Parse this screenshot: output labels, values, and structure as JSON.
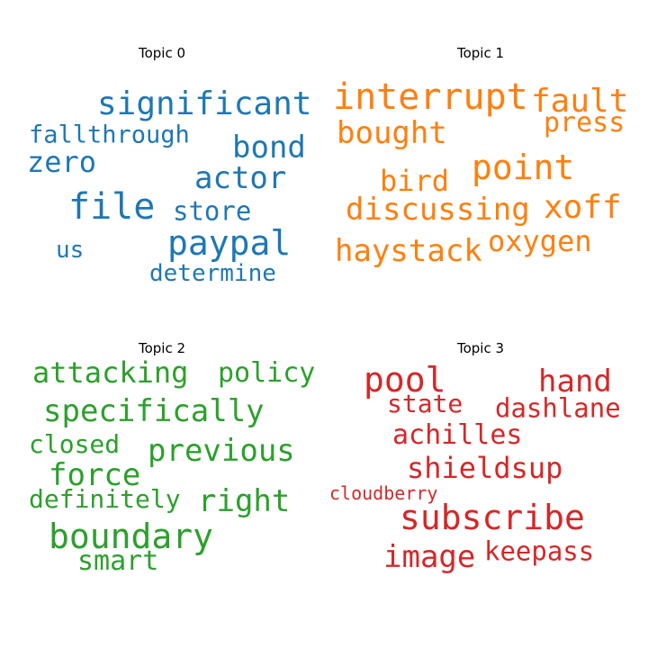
{
  "chart_data": [
    {
      "type": "wordcloud",
      "title": "Topic 0",
      "color": "#1f77b4",
      "words": [
        {
          "text": "significant",
          "size": 36
        },
        {
          "text": "fallthrough",
          "size": 27
        },
        {
          "text": "bond",
          "size": 34
        },
        {
          "text": "zero",
          "size": 32
        },
        {
          "text": "actor",
          "size": 34
        },
        {
          "text": "file",
          "size": 40
        },
        {
          "text": "store",
          "size": 29
        },
        {
          "text": "paypal",
          "size": 38
        },
        {
          "text": "us",
          "size": 26
        },
        {
          "text": "determine",
          "size": 26
        }
      ]
    },
    {
      "type": "wordcloud",
      "title": "Topic 1",
      "color": "#ff7f0e",
      "words": [
        {
          "text": "interrupt",
          "size": 40
        },
        {
          "text": "fault",
          "size": 36
        },
        {
          "text": "press",
          "size": 30
        },
        {
          "text": "bought",
          "size": 34
        },
        {
          "text": "point",
          "size": 38
        },
        {
          "text": "bird",
          "size": 32
        },
        {
          "text": "discussing",
          "size": 34
        },
        {
          "text": "xoff",
          "size": 36
        },
        {
          "text": "haystack",
          "size": 34
        },
        {
          "text": "oxygen",
          "size": 32
        }
      ]
    },
    {
      "type": "wordcloud",
      "title": "Topic 2",
      "color": "#2ca02c",
      "words": [
        {
          "text": "attacking",
          "size": 32
        },
        {
          "text": "policy",
          "size": 30
        },
        {
          "text": "specifically",
          "size": 34
        },
        {
          "text": "closed",
          "size": 28
        },
        {
          "text": "previous",
          "size": 34
        },
        {
          "text": "force",
          "size": 34
        },
        {
          "text": "definitely",
          "size": 28
        },
        {
          "text": "right",
          "size": 34
        },
        {
          "text": "boundary",
          "size": 38
        },
        {
          "text": "smart",
          "size": 30
        }
      ]
    },
    {
      "type": "wordcloud",
      "title": "Topic 3",
      "color": "#d62728",
      "words": [
        {
          "text": "pool",
          "size": 38
        },
        {
          "text": "hand",
          "size": 34
        },
        {
          "text": "state",
          "size": 28
        },
        {
          "text": "dashlane",
          "size": 29
        },
        {
          "text": "achilles",
          "size": 30
        },
        {
          "text": "shieldsup",
          "size": 32
        },
        {
          "text": "cloudberry",
          "size": 20
        },
        {
          "text": "subscribe",
          "size": 38
        },
        {
          "text": "image",
          "size": 34
        },
        {
          "text": "keepass",
          "size": 29
        }
      ]
    }
  ]
}
